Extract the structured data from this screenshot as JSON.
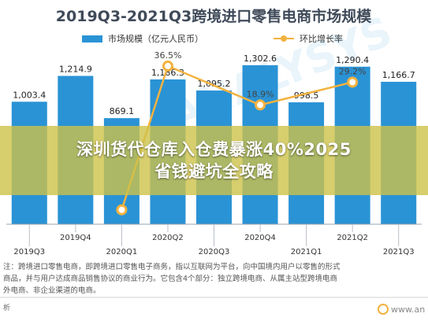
{
  "chart_data": {
    "type": "bar",
    "title": "2019Q3-2021Q3跨境进口零售电商市场规模",
    "categories": [
      "2019Q3",
      "2019Q4",
      "2020Q1",
      "2020Q2",
      "2020Q3",
      "2020Q4",
      "2021Q1",
      "2021Q2",
      "2021Q3"
    ],
    "series": [
      {
        "name": "市场规模（亿元人民币）",
        "type": "bar",
        "color": "#2a93d5",
        "values": [
          1003.4,
          1214.9,
          869.1,
          1186.3,
          1095.2,
          1302.6,
          998.5,
          1290.4,
          1166.7
        ],
        "value_labels": [
          "1,003.4",
          "1,214.9",
          "869.1",
          "1,186.3",
          "1,095.2",
          "1,302.6",
          "998.5",
          "1,290.4",
          "1,166.7"
        ]
      },
      {
        "name": "环比增长率",
        "type": "line",
        "color": "#f3b23f",
        "values": [
          null,
          null,
          -28.5,
          36.5,
          null,
          18.9,
          null,
          29.2,
          null
        ],
        "value_labels": [
          "",
          "",
          "",
          "36.5%",
          "",
          "18.9%",
          "",
          "29.2%",
          ""
        ]
      }
    ],
    "bar_ylim": [
      0,
      1450
    ],
    "line_ylim": [
      -35,
      45
    ],
    "grid": false,
    "legend": "top"
  },
  "notes": [
    "注：跨境进口零售电商，即跨境进口零售电子商务，指以互联网为平台，向中国境内用户以零售的形式",
    "商品，并与用户达成商品销售协议的商业行为。它包含4个部分：独立跨境电商、从属主站型跨境电商",
    "外电商、非企业渠道的电商。"
  ],
  "source": "析",
  "watermark": "ANALYSYS",
  "logo_text": "www.an",
  "overlay": {
    "line1": "深圳货代仓库入仓费暴涨40%2025",
    "line2": "省钱避坑全攻略"
  }
}
